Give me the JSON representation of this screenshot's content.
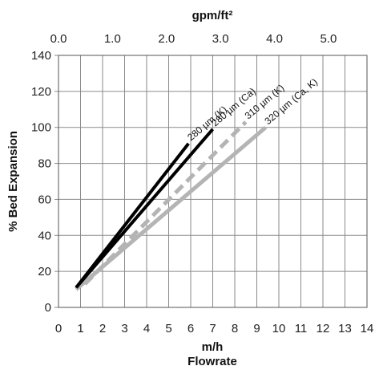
{
  "chart_data": {
    "type": "line",
    "xlabel": "m/h",
    "xlabel2": "Flowrate",
    "ylabel": "% Bed Expansion",
    "x2label": "gpm/ft²",
    "xlim": [
      0,
      14
    ],
    "ylim": [
      0,
      140
    ],
    "x_ticks": [
      "0",
      "1",
      "2",
      "3",
      "4",
      "5",
      "6",
      "7",
      "8",
      "9",
      "10",
      "11",
      "12",
      "13",
      "14"
    ],
    "y_ticks": [
      "0",
      "20",
      "40",
      "60",
      "80",
      "100",
      "120",
      "140"
    ],
    "x2_ticks": [
      {
        "label": "0.0",
        "x": 0.0
      },
      {
        "label": "1.0",
        "x": 2.45
      },
      {
        "label": "2.0",
        "x": 4.9
      },
      {
        "label": "3.0",
        "x": 7.35
      },
      {
        "label": "4.0",
        "x": 9.8
      },
      {
        "label": "5.0",
        "x": 12.25
      }
    ],
    "grid": true,
    "series": [
      {
        "name": "280 µm (K)",
        "color": "#000000",
        "dash": "solid",
        "x": [
          0.8,
          5.9
        ],
        "y": [
          11,
          91
        ]
      },
      {
        "name": "280 µm (Ca)",
        "color": "#000000",
        "dash": "solid",
        "x": [
          0.8,
          7.0
        ],
        "y": [
          11,
          99
        ]
      },
      {
        "name": "310 µm (K)",
        "color": "#b4b4b4",
        "dash": "dashed",
        "x": [
          1.2,
          8.5
        ],
        "y": [
          13,
          103
        ]
      },
      {
        "name": "320 µm (Ca, K)",
        "color": "#b4b4b4",
        "dash": "solid",
        "x": [
          0.8,
          9.4
        ],
        "y": [
          10,
          100
        ]
      }
    ]
  },
  "colors": {
    "black_series": "#000000",
    "gray_series": "#b4b4b4",
    "grid": "#8a8a8a"
  }
}
